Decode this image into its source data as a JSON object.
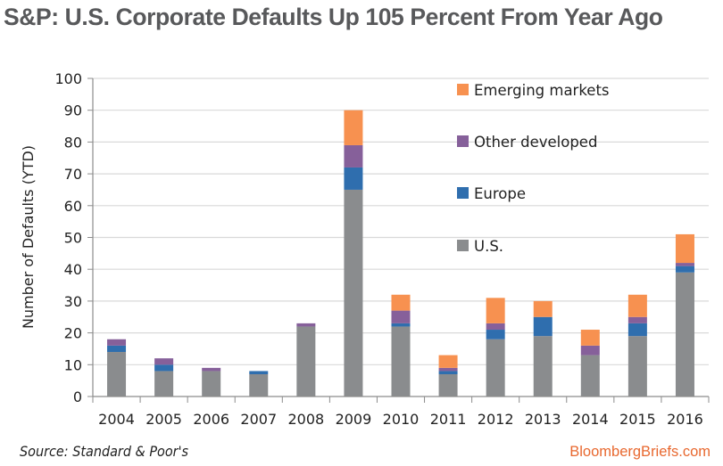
{
  "chart_data": {
    "type": "bar",
    "stacked": true,
    "title": "S&P: U.S. Corporate Defaults Up 105 Percent From Year Ago",
    "xlabel": "",
    "ylabel": "Number of Defaults (YTD)",
    "ylim": [
      0,
      100
    ],
    "yticks": [
      0,
      10,
      20,
      30,
      40,
      50,
      60,
      70,
      80,
      90,
      100
    ],
    "grid": true,
    "legend_position": "top-right",
    "categories": [
      "2004",
      "2005",
      "2006",
      "2007",
      "2008",
      "2009",
      "2010",
      "2011",
      "2012",
      "2013",
      "2014",
      "2015",
      "2016"
    ],
    "series": [
      {
        "name": "U.S.",
        "color": "#8a8c8e",
        "values": [
          14,
          8,
          8,
          7,
          22,
          65,
          22,
          7,
          18,
          19,
          13,
          19,
          39
        ]
      },
      {
        "name": "Europe",
        "color": "#2f6eae",
        "values": [
          2,
          2,
          0,
          1,
          0,
          7,
          1,
          1,
          3,
          6,
          0,
          4,
          2
        ]
      },
      {
        "name": "Other developed",
        "color": "#86609a",
        "values": [
          2,
          2,
          1,
          0,
          1,
          7,
          4,
          1,
          2,
          0,
          3,
          2,
          1
        ]
      },
      {
        "name": "Emerging markets",
        "color": "#f79150",
        "values": [
          0,
          0,
          0,
          0,
          0,
          11,
          5,
          4,
          8,
          5,
          5,
          7,
          9
        ]
      }
    ],
    "legend_order": [
      "Emerging markets",
      "Other developed",
      "Europe",
      "U.S."
    ]
  },
  "footer": {
    "source": "Source: Standard & Poor's",
    "brand": "BloombergBriefs.com"
  }
}
